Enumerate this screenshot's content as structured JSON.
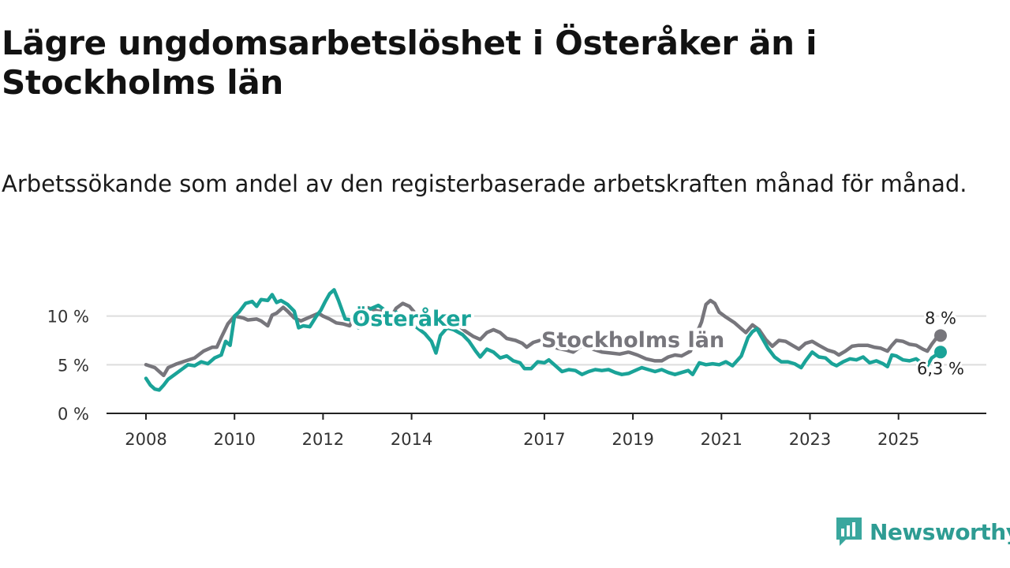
{
  "title": "Lägre ungdomsarbetslöshet i Österåker än i Stockholms län",
  "subtitle": "Arbetssökande som andel av den registerbaserade arbetskraften månad för månad.",
  "brand": "Newsworthy",
  "colors": {
    "osteraker": "#1aa398",
    "stockholm": "#77767c",
    "grid": "#dddddd",
    "axis": "#222222",
    "brand": "#2e9c93"
  },
  "chart_data": {
    "type": "line",
    "x_unit": "year",
    "xlim": [
      2008,
      2026.5
    ],
    "ylim": [
      0,
      12
    ],
    "y_ticks": [
      {
        "value": 0,
        "label": "0 %"
      },
      {
        "value": 5,
        "label": "5 %"
      },
      {
        "value": 10,
        "label": "10 %"
      }
    ],
    "x_ticks": [
      {
        "value": 2008,
        "label": "2008"
      },
      {
        "value": 2010,
        "label": "2010"
      },
      {
        "value": 2012,
        "label": "2012"
      },
      {
        "value": 2014,
        "label": "2014"
      },
      {
        "value": 2017,
        "label": "2017"
      },
      {
        "value": 2019,
        "label": "2019"
      },
      {
        "value": 2021,
        "label": "2021"
      },
      {
        "value": 2023,
        "label": "2023"
      },
      {
        "value": 2025,
        "label": "2025"
      }
    ],
    "grid": true,
    "series": [
      {
        "name": "Stockholms län",
        "end_label": "8 %",
        "points": [
          [
            2008.0,
            5.0
          ],
          [
            2008.2,
            4.7
          ],
          [
            2008.4,
            3.9
          ],
          [
            2008.5,
            4.7
          ],
          [
            2008.7,
            5.1
          ],
          [
            2008.9,
            5.4
          ],
          [
            2009.1,
            5.7
          ],
          [
            2009.3,
            6.4
          ],
          [
            2009.5,
            6.8
          ],
          [
            2009.6,
            6.8
          ],
          [
            2009.7,
            7.8
          ],
          [
            2009.85,
            9.2
          ],
          [
            2010.0,
            10.0
          ],
          [
            2010.2,
            9.8
          ],
          [
            2010.3,
            9.6
          ],
          [
            2010.5,
            9.7
          ],
          [
            2010.6,
            9.5
          ],
          [
            2010.75,
            9.0
          ],
          [
            2010.85,
            10.1
          ],
          [
            2010.95,
            10.3
          ],
          [
            2011.1,
            10.9
          ],
          [
            2011.2,
            10.5
          ],
          [
            2011.35,
            9.8
          ],
          [
            2011.5,
            9.5
          ],
          [
            2011.7,
            9.9
          ],
          [
            2011.9,
            10.3
          ],
          [
            2012.0,
            10.0
          ],
          [
            2012.15,
            9.7
          ],
          [
            2012.3,
            9.3
          ],
          [
            2012.45,
            9.2
          ],
          [
            2012.6,
            9.0
          ],
          [
            2012.75,
            10.3
          ],
          [
            2012.9,
            11.0
          ],
          [
            2013.05,
            10.8
          ],
          [
            2013.25,
            10.5
          ],
          [
            2013.45,
            10.5
          ],
          [
            2013.55,
            10.0
          ],
          [
            2013.65,
            10.8
          ],
          [
            2013.8,
            11.3
          ],
          [
            2013.95,
            11.0
          ],
          [
            2014.1,
            10.2
          ],
          [
            2014.3,
            9.8
          ],
          [
            2014.5,
            9.9
          ],
          [
            2014.65,
            10.1
          ],
          [
            2014.8,
            9.8
          ],
          [
            2015.0,
            9.3
          ],
          [
            2015.2,
            8.5
          ],
          [
            2015.4,
            7.9
          ],
          [
            2015.55,
            7.6
          ],
          [
            2015.7,
            8.3
          ],
          [
            2015.85,
            8.6
          ],
          [
            2016.0,
            8.3
          ],
          [
            2016.15,
            7.7
          ],
          [
            2016.35,
            7.5
          ],
          [
            2016.5,
            7.2
          ],
          [
            2016.6,
            6.8
          ],
          [
            2016.75,
            7.3
          ],
          [
            2016.9,
            7.5
          ],
          [
            2017.1,
            7.1
          ],
          [
            2017.3,
            6.7
          ],
          [
            2017.5,
            6.5
          ],
          [
            2017.65,
            6.3
          ],
          [
            2017.8,
            6.8
          ],
          [
            2017.95,
            7.2
          ],
          [
            2018.1,
            6.6
          ],
          [
            2018.3,
            6.3
          ],
          [
            2018.5,
            6.2
          ],
          [
            2018.7,
            6.1
          ],
          [
            2018.9,
            6.3
          ],
          [
            2019.1,
            6.0
          ],
          [
            2019.3,
            5.6
          ],
          [
            2019.5,
            5.4
          ],
          [
            2019.65,
            5.4
          ],
          [
            2019.8,
            5.8
          ],
          [
            2019.95,
            6.0
          ],
          [
            2020.1,
            5.9
          ],
          [
            2020.3,
            6.4
          ],
          [
            2020.45,
            8.3
          ],
          [
            2020.55,
            9.4
          ],
          [
            2020.65,
            11.2
          ],
          [
            2020.75,
            11.6
          ],
          [
            2020.85,
            11.3
          ],
          [
            2020.95,
            10.4
          ],
          [
            2021.1,
            9.9
          ],
          [
            2021.3,
            9.3
          ],
          [
            2021.45,
            8.7
          ],
          [
            2021.55,
            8.3
          ],
          [
            2021.7,
            9.1
          ],
          [
            2021.85,
            8.6
          ],
          [
            2022.0,
            7.6
          ],
          [
            2022.15,
            6.9
          ],
          [
            2022.3,
            7.5
          ],
          [
            2022.45,
            7.4
          ],
          [
            2022.6,
            7.0
          ],
          [
            2022.75,
            6.6
          ],
          [
            2022.9,
            7.2
          ],
          [
            2023.05,
            7.4
          ],
          [
            2023.2,
            7.0
          ],
          [
            2023.4,
            6.5
          ],
          [
            2023.55,
            6.3
          ],
          [
            2023.65,
            6.0
          ],
          [
            2023.8,
            6.4
          ],
          [
            2023.95,
            6.9
          ],
          [
            2024.1,
            7.0
          ],
          [
            2024.3,
            7.0
          ],
          [
            2024.45,
            6.8
          ],
          [
            2024.6,
            6.7
          ],
          [
            2024.75,
            6.4
          ],
          [
            2024.85,
            7.0
          ],
          [
            2024.95,
            7.5
          ],
          [
            2025.1,
            7.4
          ],
          [
            2025.25,
            7.1
          ],
          [
            2025.4,
            7.0
          ],
          [
            2025.55,
            6.6
          ],
          [
            2025.65,
            6.4
          ],
          [
            2025.75,
            7.1
          ],
          [
            2025.85,
            7.7
          ],
          [
            2025.95,
            8.0
          ]
        ]
      },
      {
        "name": "Österåker",
        "end_label": "6,3 %",
        "points": [
          [
            2008.0,
            3.6
          ],
          [
            2008.1,
            2.9
          ],
          [
            2008.2,
            2.5
          ],
          [
            2008.3,
            2.4
          ],
          [
            2008.4,
            2.9
          ],
          [
            2008.5,
            3.5
          ],
          [
            2008.65,
            4.0
          ],
          [
            2008.8,
            4.5
          ],
          [
            2008.95,
            5.0
          ],
          [
            2009.1,
            4.9
          ],
          [
            2009.25,
            5.3
          ],
          [
            2009.4,
            5.1
          ],
          [
            2009.55,
            5.7
          ],
          [
            2009.7,
            6.0
          ],
          [
            2009.8,
            7.4
          ],
          [
            2009.9,
            7.0
          ],
          [
            2010.0,
            10.0
          ],
          [
            2010.1,
            10.4
          ],
          [
            2010.25,
            11.3
          ],
          [
            2010.4,
            11.5
          ],
          [
            2010.5,
            11.0
          ],
          [
            2010.6,
            11.7
          ],
          [
            2010.75,
            11.6
          ],
          [
            2010.85,
            12.2
          ],
          [
            2010.95,
            11.4
          ],
          [
            2011.05,
            11.6
          ],
          [
            2011.2,
            11.2
          ],
          [
            2011.35,
            10.5
          ],
          [
            2011.45,
            8.8
          ],
          [
            2011.55,
            9.0
          ],
          [
            2011.7,
            8.9
          ],
          [
            2011.85,
            10.0
          ],
          [
            2011.95,
            10.6
          ],
          [
            2012.05,
            11.5
          ],
          [
            2012.15,
            12.3
          ],
          [
            2012.25,
            12.7
          ],
          [
            2012.35,
            11.6
          ],
          [
            2012.5,
            9.7
          ],
          [
            2012.65,
            9.6
          ],
          [
            2012.8,
            8.8
          ],
          [
            2012.9,
            10.3
          ],
          [
            2013.05,
            10.7
          ],
          [
            2013.25,
            11.1
          ],
          [
            2013.4,
            10.6
          ],
          [
            2013.55,
            9.9
          ],
          [
            2013.65,
            10.4
          ],
          [
            2013.8,
            9.6
          ],
          [
            2013.95,
            9.4
          ],
          [
            2014.1,
            8.9
          ],
          [
            2014.3,
            8.2
          ],
          [
            2014.45,
            7.4
          ],
          [
            2014.55,
            6.2
          ],
          [
            2014.65,
            8.0
          ],
          [
            2014.8,
            8.8
          ],
          [
            2014.95,
            8.6
          ],
          [
            2015.15,
            8.1
          ],
          [
            2015.3,
            7.4
          ],
          [
            2015.45,
            6.4
          ],
          [
            2015.55,
            5.8
          ],
          [
            2015.7,
            6.6
          ],
          [
            2015.85,
            6.3
          ],
          [
            2016.0,
            5.7
          ],
          [
            2016.15,
            5.9
          ],
          [
            2016.3,
            5.4
          ],
          [
            2016.45,
            5.2
          ],
          [
            2016.55,
            4.6
          ],
          [
            2016.7,
            4.6
          ],
          [
            2016.85,
            5.3
          ],
          [
            2017.0,
            5.2
          ],
          [
            2017.1,
            5.5
          ],
          [
            2017.25,
            4.9
          ],
          [
            2017.4,
            4.3
          ],
          [
            2017.55,
            4.5
          ],
          [
            2017.7,
            4.4
          ],
          [
            2017.85,
            4.0
          ],
          [
            2018.0,
            4.3
          ],
          [
            2018.15,
            4.5
          ],
          [
            2018.3,
            4.4
          ],
          [
            2018.45,
            4.5
          ],
          [
            2018.6,
            4.2
          ],
          [
            2018.75,
            4.0
          ],
          [
            2018.9,
            4.1
          ],
          [
            2019.05,
            4.4
          ],
          [
            2019.2,
            4.7
          ],
          [
            2019.35,
            4.5
          ],
          [
            2019.5,
            4.3
          ],
          [
            2019.65,
            4.5
          ],
          [
            2019.8,
            4.2
          ],
          [
            2019.95,
            4.0
          ],
          [
            2020.1,
            4.2
          ],
          [
            2020.25,
            4.4
          ],
          [
            2020.35,
            4.0
          ],
          [
            2020.5,
            5.2
          ],
          [
            2020.65,
            5.0
          ],
          [
            2020.8,
            5.1
          ],
          [
            2020.95,
            5.0
          ],
          [
            2021.1,
            5.3
          ],
          [
            2021.25,
            4.9
          ],
          [
            2021.45,
            5.9
          ],
          [
            2021.6,
            7.8
          ],
          [
            2021.7,
            8.4
          ],
          [
            2021.8,
            8.7
          ],
          [
            2021.95,
            7.5
          ],
          [
            2022.05,
            6.7
          ],
          [
            2022.2,
            5.8
          ],
          [
            2022.35,
            5.3
          ],
          [
            2022.5,
            5.3
          ],
          [
            2022.65,
            5.1
          ],
          [
            2022.8,
            4.7
          ],
          [
            2022.9,
            5.4
          ],
          [
            2023.05,
            6.3
          ],
          [
            2023.2,
            5.8
          ],
          [
            2023.35,
            5.7
          ],
          [
            2023.5,
            5.1
          ],
          [
            2023.6,
            4.9
          ],
          [
            2023.75,
            5.3
          ],
          [
            2023.9,
            5.6
          ],
          [
            2024.05,
            5.5
          ],
          [
            2024.2,
            5.8
          ],
          [
            2024.35,
            5.2
          ],
          [
            2024.5,
            5.4
          ],
          [
            2024.65,
            5.1
          ],
          [
            2024.75,
            4.8
          ],
          [
            2024.85,
            6.0
          ],
          [
            2024.95,
            5.9
          ],
          [
            2025.1,
            5.5
          ],
          [
            2025.25,
            5.4
          ],
          [
            2025.4,
            5.6
          ],
          [
            2025.55,
            5.1
          ],
          [
            2025.65,
            4.9
          ],
          [
            2025.75,
            5.7
          ],
          [
            2025.85,
            6.0
          ],
          [
            2025.95,
            6.3
          ]
        ]
      }
    ],
    "series_labels": [
      {
        "series": "Österåker",
        "text": "Österåker",
        "x": 2014.0,
        "y": 9.0
      },
      {
        "series": "Stockholms län",
        "text": "Stockholms län",
        "x": 2019.0,
        "y": 6.8
      }
    ]
  }
}
